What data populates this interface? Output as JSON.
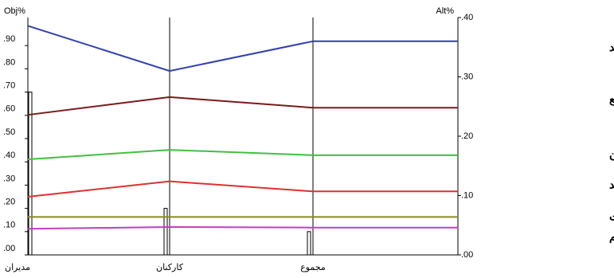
{
  "chart_data": {
    "type": "line",
    "y_label": "Obj%",
    "y2_label": "Alt%",
    "categories": [
      "مدیران",
      "کارکنان",
      "مجموع"
    ],
    "objective_values": [
      0.7,
      0.2,
      0.1
    ],
    "ylim": [
      0,
      1.0
    ],
    "yticks": [
      {
        "value": 0,
        "label": ".00"
      },
      {
        "value": 0.1,
        "label": ".10"
      },
      {
        "value": 0.2,
        "label": ".20"
      },
      {
        "value": 0.3,
        "label": ".30"
      },
      {
        "value": 0.4,
        "label": ".40"
      },
      {
        "value": 0.5,
        "label": ".50"
      },
      {
        "value": 0.6,
        "label": ".60"
      },
      {
        "value": 0.7,
        "label": ".70"
      },
      {
        "value": 0.8,
        "label": ".80"
      },
      {
        "value": 0.9,
        "label": ".90"
      }
    ],
    "y2lim": [
      0,
      0.4
    ],
    "y2ticks": [
      {
        "value": 0,
        "label": ".00"
      },
      {
        "value": 0.1,
        "label": ".10"
      },
      {
        "value": 0.2,
        "label": ".20"
      },
      {
        "value": 0.3,
        "label": ".30"
      },
      {
        "value": 0.4,
        "label": ".40"
      }
    ],
    "series": [
      {
        "name": "عدم حمایت مدیران ارشد",
        "color": "#3040b0",
        "axis": "y2",
        "values": [
          0.386,
          0.31,
          0.36
        ]
      },
      {
        "name": "تغییرات سریع",
        "color": "#7a1a1a",
        "axis": "y2",
        "values": [
          0.236,
          0.266,
          0.248
        ]
      },
      {
        "name": "سیاست های سازمان",
        "color": "#40c040",
        "axis": "y2",
        "values": [
          0.161,
          0.177,
          0.168
        ]
      },
      {
        "name": "تشریفات زائد",
        "color": "#e03030",
        "axis": "y2",
        "values": [
          0.098,
          0.124,
          0.107
        ]
      },
      {
        "name": "دید کوتاه مدت",
        "color": "#8a8a20",
        "axis": "y2",
        "values": [
          0.064,
          0.064,
          0.064
        ]
      },
      {
        "name": "وضوح کم",
        "color": "#c040c0",
        "axis": "y2",
        "values": [
          0.044,
          0.047,
          0.046
        ]
      }
    ]
  }
}
